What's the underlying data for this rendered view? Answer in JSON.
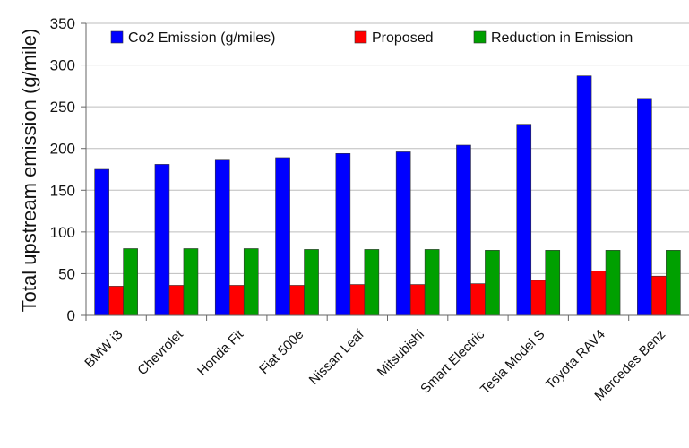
{
  "chart_data": {
    "type": "bar",
    "ylabel": "Total upstream emission (g/mile)",
    "xlabel": "",
    "ylim": [
      0,
      350
    ],
    "yticks": [
      0,
      50,
      100,
      150,
      200,
      250,
      300,
      350
    ],
    "grid": "horizontal",
    "legend_position": "top",
    "categories": [
      "BMW i3",
      "Chevrolet",
      "Honda Fit",
      "Fiat 500e",
      "Nissan Leaf",
      "Mitsubishi",
      "Smart Electric",
      "Tesla Model S",
      "Toyota RAV4",
      "Mercedes Benz"
    ],
    "series": [
      {
        "name": "Co2 Emission (g/miles)",
        "color": "#0000ff",
        "values": [
          175,
          181,
          186,
          189,
          194,
          196,
          204,
          229,
          287,
          260
        ]
      },
      {
        "name": "Proposed",
        "color": "#ff0000",
        "values": [
          35,
          36,
          36,
          36,
          37,
          37,
          38,
          42,
          53,
          47
        ]
      },
      {
        "name": "Reduction in Emission",
        "color": "#00a000",
        "values": [
          80,
          80,
          80,
          79,
          79,
          79,
          78,
          78,
          78,
          78
        ]
      }
    ]
  }
}
